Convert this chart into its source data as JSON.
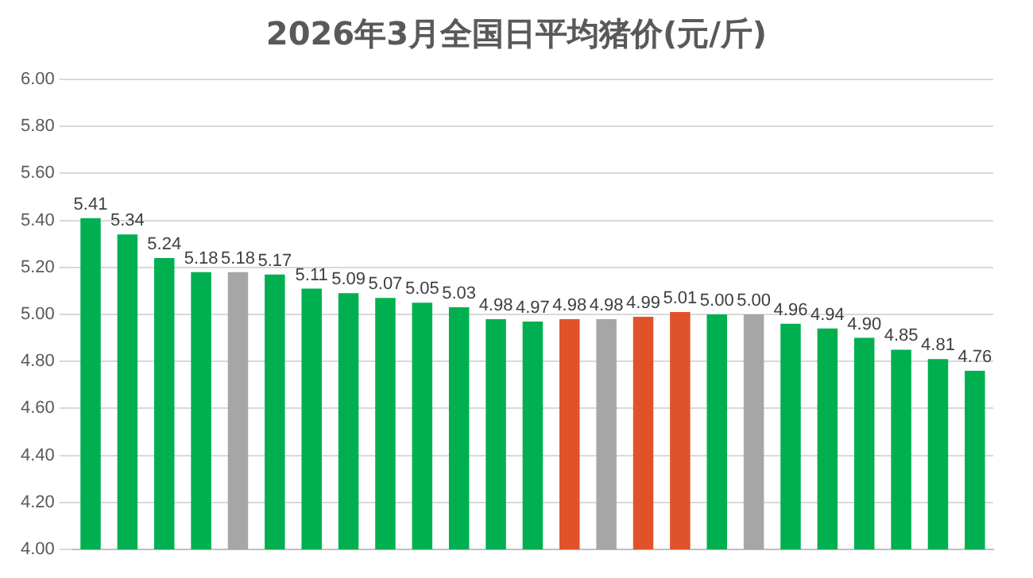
{
  "chart_data": {
    "type": "bar",
    "title": "2026年3月全国日平均猪价(元/斤)",
    "categories": [
      null,
      null,
      null,
      null,
      null,
      null,
      null,
      null,
      null,
      null,
      null,
      null,
      null,
      null,
      null,
      null,
      null,
      null,
      null,
      null,
      null,
      null,
      null,
      null,
      null
    ],
    "values": [
      5.41,
      5.34,
      5.24,
      5.18,
      5.18,
      5.17,
      5.11,
      5.09,
      5.07,
      5.05,
      5.03,
      4.98,
      4.97,
      4.98,
      4.98,
      4.99,
      5.01,
      5.0,
      5.0,
      4.96,
      4.94,
      4.9,
      4.85,
      4.81,
      4.76
    ],
    "value_labels": [
      "5.41",
      "5.34",
      "5.24",
      "5.18",
      "5.18",
      "5.17",
      "5.11",
      "5.09",
      "5.07",
      "5.05",
      "5.03",
      "4.98",
      "4.97",
      "4.98",
      "4.98",
      "4.99",
      "5.01",
      "5.00",
      "5.00",
      "4.96",
      "4.94",
      "4.90",
      "4.85",
      "4.81",
      "4.76"
    ],
    "colors": [
      "#00b050",
      "#00b050",
      "#00b050",
      "#00b050",
      "#a6a6a6",
      "#00b050",
      "#00b050",
      "#00b050",
      "#00b050",
      "#00b050",
      "#00b050",
      "#00b050",
      "#00b050",
      "#e0522a",
      "#a6a6a6",
      "#e0522a",
      "#e0522a",
      "#00b050",
      "#a6a6a6",
      "#00b050",
      "#00b050",
      "#00b050",
      "#00b050",
      "#00b050",
      "#00b050"
    ],
    "ylim": [
      4,
      6
    ],
    "yticks": [
      {
        "value": 4,
        "label": "4.00"
      },
      {
        "value": 4.2,
        "label": "4.20"
      },
      {
        "value": 4.4,
        "label": "4.40"
      },
      {
        "value": 4.6,
        "label": "4.60"
      },
      {
        "value": 4.8,
        "label": "4.80"
      },
      {
        "value": 5,
        "label": "5.00"
      },
      {
        "value": 5.2,
        "label": "5.20"
      },
      {
        "value": 5.4,
        "label": "5.40"
      },
      {
        "value": 5.6,
        "label": "5.60"
      },
      {
        "value": 5.8,
        "label": "5.80"
      },
      {
        "value": 6,
        "label": "6.00"
      }
    ],
    "grid": "y",
    "legend": false
  }
}
